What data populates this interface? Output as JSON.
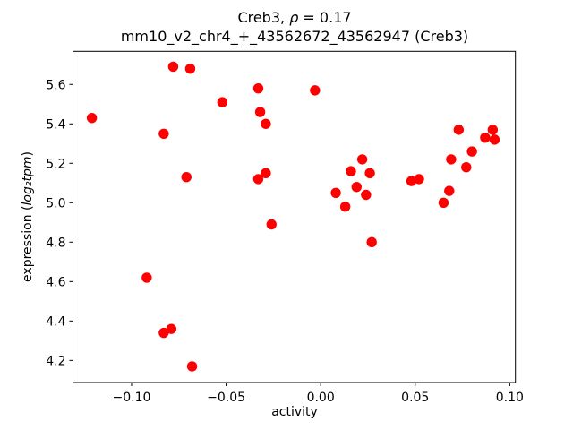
{
  "chart_data": {
    "type": "scatter",
    "title": "Creb3, ρ = 0.17",
    "title_parts": {
      "prefix": "Creb3, ",
      "rho": "ρ",
      "suffix": " = 0.17"
    },
    "subtitle": "mm10_v2_chr4_+_43562672_43562947 (Creb3)",
    "rho": 0.17,
    "xlabel": "activity",
    "ylabel": "expression (log₂tpm)",
    "ylabel_parts": {
      "prefix": "expression (",
      "math": "log₂tpm",
      "suffix": ")"
    },
    "marker_color": "#ff0000",
    "marker_shape": "circle",
    "grid": false,
    "legend": null,
    "xlim": [
      -0.131,
      0.103
    ],
    "ylim": [
      4.088,
      5.768
    ],
    "x_ticks": [
      -0.1,
      -0.05,
      0.0,
      0.05,
      0.1
    ],
    "x_tick_labels": [
      "−0.10",
      "−0.05",
      "0.00",
      "0.05",
      "0.10"
    ],
    "y_ticks": [
      5.6,
      5.4,
      5.2,
      5.0,
      4.8,
      4.6,
      4.4,
      4.2
    ],
    "y_tick_labels": [
      "5.6",
      "5.4",
      "5.2",
      "5.0",
      "4.8",
      "4.6",
      "4.4",
      "4.2"
    ],
    "points": [
      [
        -0.121,
        5.43
      ],
      [
        -0.092,
        4.62
      ],
      [
        -0.083,
        5.35
      ],
      [
        -0.083,
        4.34
      ],
      [
        -0.079,
        4.36
      ],
      [
        -0.078,
        5.69
      ],
      [
        -0.071,
        5.13
      ],
      [
        -0.069,
        5.68
      ],
      [
        -0.068,
        4.17
      ],
      [
        -0.052,
        5.51
      ],
      [
        -0.033,
        5.58
      ],
      [
        -0.033,
        5.12
      ],
      [
        -0.032,
        5.46
      ],
      [
        -0.029,
        5.4
      ],
      [
        -0.029,
        5.15
      ],
      [
        -0.026,
        4.89
      ],
      [
        -0.003,
        5.57
      ],
      [
        0.008,
        5.05
      ],
      [
        0.013,
        4.98
      ],
      [
        0.016,
        5.16
      ],
      [
        0.019,
        5.08
      ],
      [
        0.022,
        5.22
      ],
      [
        0.024,
        5.04
      ],
      [
        0.026,
        5.15
      ],
      [
        0.027,
        4.8
      ],
      [
        0.048,
        5.11
      ],
      [
        0.052,
        5.12
      ],
      [
        0.065,
        5.0
      ],
      [
        0.068,
        5.06
      ],
      [
        0.069,
        5.22
      ],
      [
        0.073,
        5.37
      ],
      [
        0.077,
        5.18
      ],
      [
        0.08,
        5.26
      ],
      [
        0.087,
        5.33
      ],
      [
        0.091,
        5.37
      ],
      [
        0.092,
        5.32
      ]
    ]
  }
}
